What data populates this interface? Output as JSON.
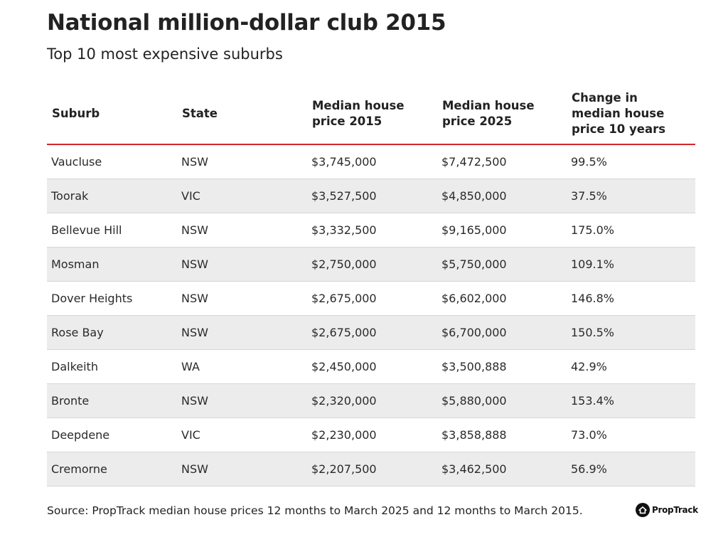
{
  "title": "National million-dollar club 2015",
  "subtitle": "Top 10 most expensive suburbs",
  "columns": [
    "Suburb",
    "State",
    "Median house\nprice 2015",
    "Median house\nprice 2025",
    "Change in\nmedian house\nprice 10 years"
  ],
  "rows": [
    [
      "Vaucluse",
      "NSW",
      "$3,745,000",
      "$7,472,500",
      "99.5%"
    ],
    [
      "Toorak",
      "VIC",
      "$3,527,500",
      "$4,850,000",
      "37.5%"
    ],
    [
      "Bellevue Hill",
      "NSW",
      "$3,332,500",
      "$9,165,000",
      "175.0%"
    ],
    [
      "Mosman",
      "NSW",
      "$2,750,000",
      "$5,750,000",
      "109.1%"
    ],
    [
      "Dover Heights",
      "NSW",
      "$2,675,000",
      "$6,602,000",
      "146.8%"
    ],
    [
      "Rose Bay",
      "NSW",
      "$2,675,000",
      "$6,700,000",
      "150.5%"
    ],
    [
      "Dalkeith",
      "WA",
      "$2,450,000",
      "$3,500,888",
      "42.9%"
    ],
    [
      "Bronte",
      "NSW",
      "$2,320,000",
      "$5,880,000",
      "153.4%"
    ],
    [
      "Deepdene",
      "VIC",
      "$2,230,000",
      "$3,858,888",
      "73.0%"
    ],
    [
      "Cremorne",
      "NSW",
      "$2,207,500",
      "$3,462,500",
      "56.9%"
    ]
  ],
  "source": "Source: PropTrack median house prices 12 months to March 2025 and 12 months to March 2015.",
  "brand": {
    "name": "PropTrack",
    "icon": "house-logo-icon"
  },
  "colors": {
    "accent_rule": "#d4262b",
    "stripe": "#ececec"
  }
}
